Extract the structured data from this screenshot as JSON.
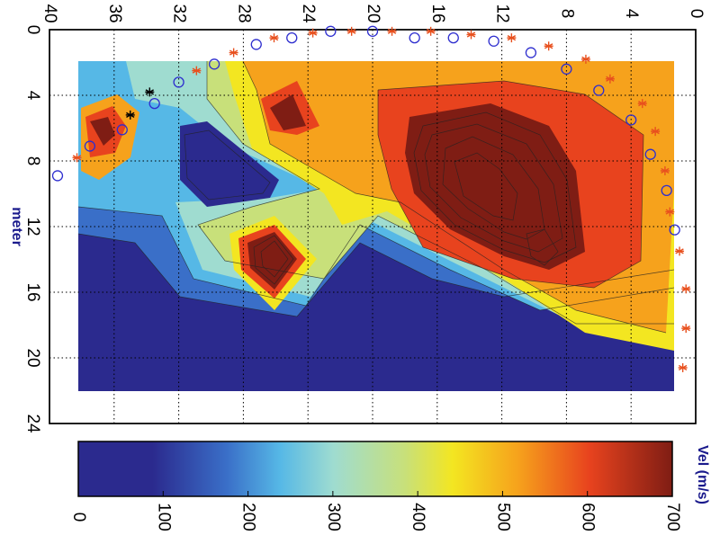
{
  "chart_data": {
    "type": "heatmap",
    "title": "",
    "axis_label": "meter",
    "colorbar_label": "Vel (m/s)",
    "x_axis": {
      "label": "",
      "range": [
        40,
        0
      ],
      "ticks": [
        40,
        36,
        32,
        28,
        24,
        20,
        16,
        12,
        8,
        4,
        0
      ],
      "tick_labels": [
        "40",
        "36",
        "32",
        "28",
        "24",
        "20",
        "16",
        "12",
        "8",
        "4",
        "0"
      ],
      "grid": true
    },
    "y_axis": {
      "label": "meter",
      "range": [
        0,
        24
      ],
      "ticks": [
        0,
        4,
        8,
        12,
        16,
        20,
        24
      ],
      "tick_labels": [
        "0",
        "4",
        "8",
        "12",
        "16",
        "20",
        "24"
      ],
      "grid": true
    },
    "colorbar": {
      "range": [
        0,
        700
      ],
      "ticks": [
        0,
        100,
        200,
        300,
        400,
        500,
        600,
        700
      ],
      "tick_labels": [
        "0",
        "100",
        "200",
        "300",
        "400",
        "500",
        "600",
        "700"
      ],
      "colormap": "jet",
      "colors": [
        "#2b2a8e",
        "#3a6fc8",
        "#56b8e6",
        "#9fdcd0",
        "#c8e07a",
        "#f3e621",
        "#f6a21c",
        "#e8431e",
        "#7f1d14"
      ]
    },
    "contour_field_extent": {
      "x": [
        38.2,
        1.8
      ],
      "y": [
        1.9,
        22.0
      ]
    },
    "source_points": [
      {
        "x": 39.5,
        "y": 8.9
      },
      {
        "x": 37.5,
        "y": 7.1
      },
      {
        "x": 35.5,
        "y": 6.1
      },
      {
        "x": 33.5,
        "y": 4.5
      },
      {
        "x": 32.0,
        "y": 3.2
      },
      {
        "x": 29.8,
        "y": 2.1
      },
      {
        "x": 27.2,
        "y": 0.9
      },
      {
        "x": 25.0,
        "y": 0.5
      },
      {
        "x": 22.6,
        "y": 0.1
      },
      {
        "x": 20.0,
        "y": 0.1
      },
      {
        "x": 17.4,
        "y": 0.5
      },
      {
        "x": 15.0,
        "y": 0.5
      },
      {
        "x": 12.5,
        "y": 0.7
      },
      {
        "x": 10.2,
        "y": 1.4
      },
      {
        "x": 8.0,
        "y": 2.4
      },
      {
        "x": 6.0,
        "y": 3.7
      },
      {
        "x": 4.0,
        "y": 5.5
      },
      {
        "x": 2.8,
        "y": 7.6
      },
      {
        "x": 1.8,
        "y": 9.8
      },
      {
        "x": 1.3,
        "y": 12.2
      }
    ],
    "receiver_points_orange": [
      {
        "x": 38.3,
        "y": 7.8
      },
      {
        "x": 30.9,
        "y": 2.5
      },
      {
        "x": 28.6,
        "y": 1.4
      },
      {
        "x": 26.1,
        "y": 0.5
      },
      {
        "x": 23.7,
        "y": 0.2
      },
      {
        "x": 21.3,
        "y": 0.1
      },
      {
        "x": 18.8,
        "y": 0.1
      },
      {
        "x": 16.4,
        "y": 0.1
      },
      {
        "x": 13.9,
        "y": 0.3
      },
      {
        "x": 11.4,
        "y": 0.5
      },
      {
        "x": 9.1,
        "y": 1.0
      },
      {
        "x": 6.8,
        "y": 1.8
      },
      {
        "x": 5.3,
        "y": 3.0
      },
      {
        "x": 3.3,
        "y": 4.5
      },
      {
        "x": 2.5,
        "y": 6.2
      },
      {
        "x": 1.9,
        "y": 8.6
      },
      {
        "x": 1.6,
        "y": 11.1
      },
      {
        "x": 1.0,
        "y": 13.5
      },
      {
        "x": 0.6,
        "y": 15.8
      },
      {
        "x": 0.6,
        "y": 18.2
      },
      {
        "x": 0.8,
        "y": 20.6
      }
    ],
    "receiver_points_black": [
      {
        "x": 35.0,
        "y": 5.2
      },
      {
        "x": 33.8,
        "y": 3.8
      }
    ]
  }
}
